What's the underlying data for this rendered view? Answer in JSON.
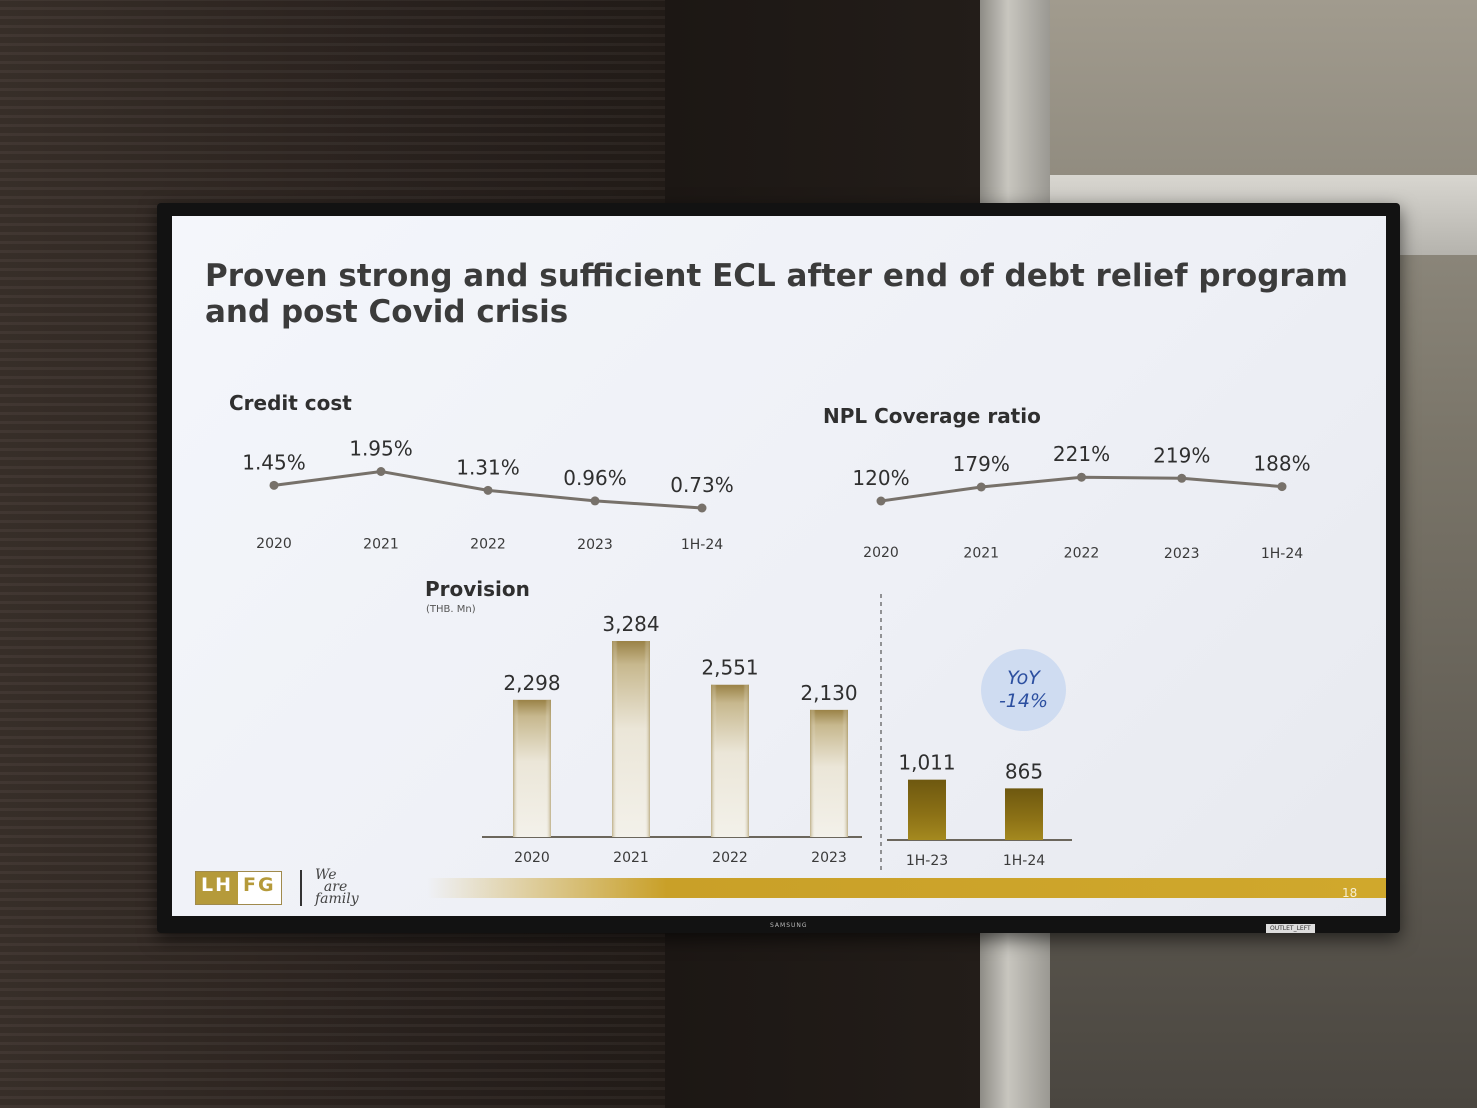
{
  "slide": {
    "title": "Proven strong and sufficient ECL after end of debt relief program and post Covid crisis",
    "page_number": "18",
    "logo": {
      "left": "LH",
      "right": "FG"
    },
    "slogan": "We are family"
  },
  "tv": {
    "brand": "SAMSUNG",
    "tag": "OUTLET_LEFT"
  },
  "colors": {
    "line": "#77716a",
    "bar_fill_light": "#f1eee4",
    "bar_fill_dark": "#9a8246",
    "bar_fill_solid": "#8a6e14",
    "accent_gold": "#c9a028",
    "yoy_bubble": "#cfdcf1"
  },
  "chart_data": [
    {
      "type": "line",
      "title": "Credit cost",
      "categories": [
        "2020",
        "2021",
        "2022",
        "2023",
        "1H-24"
      ],
      "values": [
        1.45,
        1.95,
        1.31,
        0.96,
        0.73
      ],
      "labels": [
        "1.45%",
        "1.95%",
        "1.31%",
        "0.96%",
        "0.73%"
      ],
      "unit": "%",
      "grid": false
    },
    {
      "type": "line",
      "title": "NPL Coverage ratio",
      "categories": [
        "2020",
        "2021",
        "2022",
        "2023",
        "1H-24"
      ],
      "values": [
        120,
        179,
        221,
        219,
        188
      ],
      "labels": [
        "120%",
        "179%",
        "221%",
        "219%",
        "188%"
      ],
      "unit": "%",
      "grid": false
    },
    {
      "type": "bar",
      "title": "Provision",
      "subtitle": "(THB. Mn)",
      "categories": [
        "2020",
        "2021",
        "2022",
        "2023",
        "1H-23",
        "1H-24"
      ],
      "values": [
        2298,
        3284,
        2551,
        2130,
        1011,
        865
      ],
      "labels": [
        "2,298",
        "3,284",
        "2,551",
        "2,130",
        "1,011",
        "865"
      ],
      "ylim": [
        0,
        3284
      ],
      "annotation": {
        "line1": "YoY",
        "line2": "-14%"
      },
      "grid": false
    }
  ]
}
